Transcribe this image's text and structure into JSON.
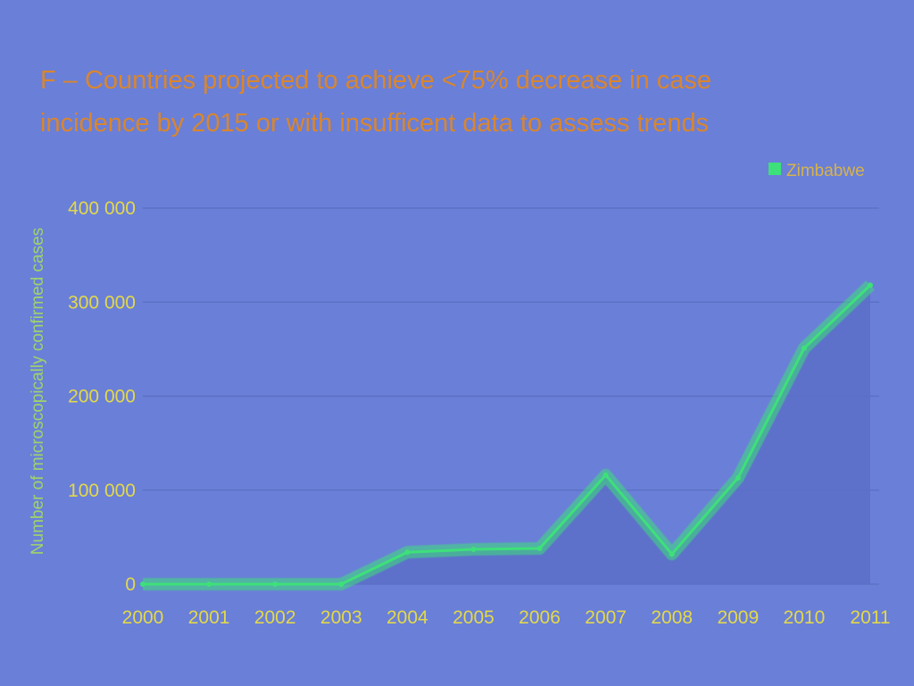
{
  "colors": {
    "background": "#6a7fd8",
    "series_fill": "#5b6ec8",
    "series_line": "#3ee07a",
    "title": "#d9862e",
    "tick": "#e2d94a",
    "gridline": "#5c70c6"
  },
  "chart_data": {
    "type": "area",
    "title_lines": [
      "F – Countries projected to achieve <75% decrease in case",
      "incidence by 2015 or with insuffi­cent data to assess trends"
    ],
    "xlabel": "",
    "ylabel": "Number of microscopically confirmed cases",
    "x": [
      "2000",
      "2001",
      "2002",
      "2003",
      "2004",
      "2005",
      "2006",
      "2007",
      "2008",
      "2009",
      "2010",
      "2011"
    ],
    "series": [
      {
        "name": "Zimbabwe",
        "values": [
          0,
          0,
          0,
          0,
          34000,
          37000,
          38000,
          116000,
          32000,
          113000,
          251000,
          318000
        ]
      }
    ],
    "ylim": [
      0,
      400000
    ],
    "yticks": [
      0,
      100000,
      200000,
      300000,
      400000
    ],
    "ytick_labels": [
      "0",
      "100 000",
      "200 000",
      "300 000",
      "400 000"
    ],
    "grid": true,
    "legend_position": "top-right"
  }
}
